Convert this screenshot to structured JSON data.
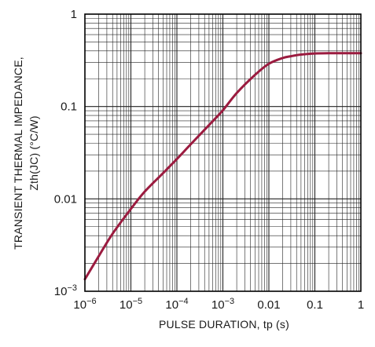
{
  "colors": {
    "curve": "#9b1b3f",
    "grid": "#222222",
    "frame": "#000000",
    "text": "#1a1a1a"
  },
  "chart_data": {
    "type": "line",
    "title": "",
    "xlabel": "PULSE DURATION, tp (s)",
    "ylabel_line1": "TRANSIENT THERMAL IMPEDANCE,",
    "ylabel_line2": "Zth(JC) (°C/W)",
    "x_scale": "log",
    "y_scale": "log",
    "xlim": [
      1e-06,
      1
    ],
    "ylim": [
      0.001,
      1
    ],
    "grid": true,
    "x_ticks": [
      {
        "value": 1e-06,
        "base": "10",
        "exp": "−6"
      },
      {
        "value": 1e-05,
        "base": "10",
        "exp": "−5"
      },
      {
        "value": 0.0001,
        "base": "10",
        "exp": "−4"
      },
      {
        "value": 0.001,
        "base": "10",
        "exp": "−3"
      },
      {
        "value": 0.01,
        "label": "0.01"
      },
      {
        "value": 0.1,
        "label": "0.1"
      },
      {
        "value": 1,
        "label": "1"
      }
    ],
    "y_ticks": [
      {
        "value": 0.001,
        "base": "10",
        "exp": "−3"
      },
      {
        "value": 0.01,
        "label": "0.01"
      },
      {
        "value": 0.1,
        "label": "0.1"
      },
      {
        "value": 1,
        "label": "1"
      }
    ],
    "series": [
      {
        "x": [
          1e-06,
          2e-06,
          4e-06,
          1e-05,
          2e-05,
          5e-05,
          0.0001,
          0.0002,
          0.0005,
          0.001,
          0.002,
          0.005,
          0.01,
          0.02,
          0.03,
          0.05,
          0.1,
          0.2,
          0.5,
          1
        ],
        "y": [
          0.00135,
          0.0024,
          0.0042,
          0.0078,
          0.012,
          0.019,
          0.027,
          0.039,
          0.063,
          0.091,
          0.14,
          0.22,
          0.29,
          0.335,
          0.35,
          0.365,
          0.375,
          0.378,
          0.378,
          0.378
        ]
      }
    ]
  }
}
